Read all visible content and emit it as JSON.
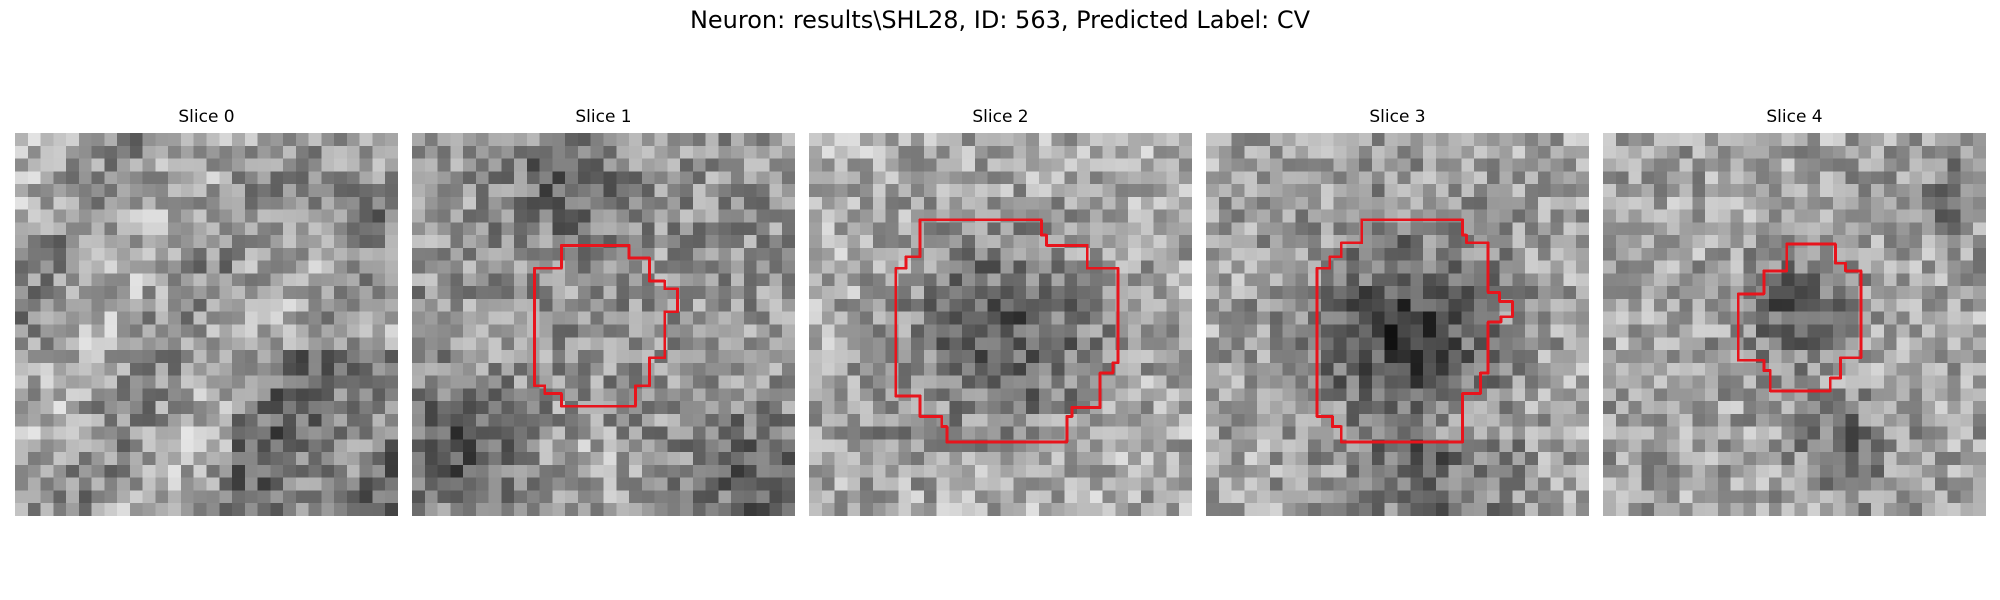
{
  "figure": {
    "title": "Neuron: results\\SHL28, ID: 563, Predicted Label: CV",
    "contour_color": "#e8141c",
    "colormap": "grayscale",
    "panels": [
      {
        "title": "Slice 0",
        "has_contour": false
      },
      {
        "title": "Slice 1",
        "has_contour": true
      },
      {
        "title": "Slice 2",
        "has_contour": true
      },
      {
        "title": "Slice 3",
        "has_contour": true
      },
      {
        "title": "Slice 4",
        "has_contour": true
      }
    ]
  }
}
